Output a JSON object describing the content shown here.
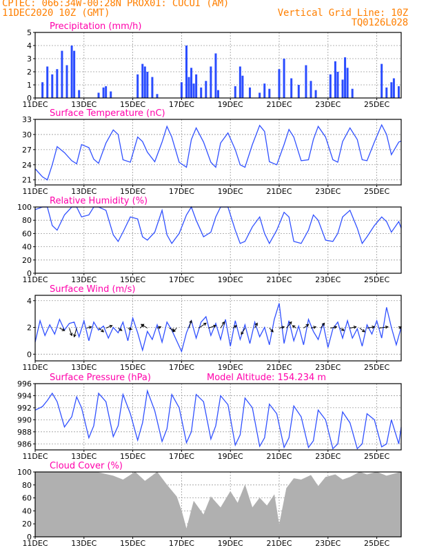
{
  "header": {
    "line1": "CPTEC:   066:34W-00:28N   PROX01: CUCUI (AM)",
    "line2": "11DEC2020 10Z (GMT)",
    "grid_note": "Vertical Grid Line: 10Z",
    "code": "TQ0126L028",
    "model_altitude": "Model Altitude: 154.234 m"
  },
  "colors": {
    "header": "#ff7f00",
    "title": "#ff00aa",
    "series": "#3050ff",
    "bars": "#2a4cff",
    "cloud": "#b0b0b0",
    "arrows": "#000000"
  },
  "x_ticks": [
    "11DEC",
    "13DEC",
    "15DEC",
    "17DEC",
    "19DEC",
    "21DEC",
    "23DEC",
    "25DEC"
  ],
  "x_tick_days": [
    0,
    2,
    4,
    6,
    8,
    10,
    12,
    14
  ],
  "x_range_days": [
    0,
    15
  ],
  "chart_data": [
    {
      "id": "precip",
      "type": "bar",
      "title": "Precipitation (mm/h)",
      "ylim": [
        0,
        5
      ],
      "yticks": [
        0,
        1,
        2,
        3,
        4,
        5
      ],
      "grid": true,
      "x_unit": "days since 11DEC 10Z",
      "x": [
        0.3,
        0.5,
        0.7,
        0.9,
        1.1,
        1.3,
        1.5,
        1.6,
        1.8,
        2.6,
        2.8,
        2.9,
        3.1,
        4.2,
        4.4,
        4.5,
        4.6,
        4.8,
        5.0,
        6.0,
        6.2,
        6.3,
        6.4,
        6.5,
        6.6,
        6.8,
        7.0,
        7.2,
        7.4,
        7.5,
        8.2,
        8.4,
        8.5,
        8.8,
        9.2,
        9.4,
        9.6,
        10.0,
        10.2,
        10.5,
        10.8,
        11.1,
        11.3,
        11.5,
        12.1,
        12.3,
        12.4,
        12.6,
        12.7,
        12.8,
        13.0,
        14.2,
        14.4,
        14.6,
        14.7,
        14.9
      ],
      "values": [
        1.2,
        2.4,
        1.8,
        2.2,
        3.6,
        2.5,
        4.0,
        3.6,
        0.6,
        0.4,
        0.8,
        0.9,
        0.5,
        1.8,
        2.6,
        2.4,
        2.0,
        1.6,
        0.3,
        1.2,
        4.0,
        1.6,
        2.3,
        1.1,
        1.8,
        0.8,
        1.3,
        2.4,
        3.4,
        0.6,
        0.9,
        2.4,
        1.7,
        0.8,
        0.4,
        1.1,
        0.7,
        2.2,
        3.0,
        1.5,
        1.0,
        2.5,
        1.3,
        0.6,
        1.8,
        2.8,
        2.0,
        1.4,
        3.1,
        2.3,
        0.7,
        2.6,
        0.8,
        1.2,
        1.5,
        0.9
      ]
    },
    {
      "id": "temp",
      "type": "line",
      "title": "Surface Temperature (nC)",
      "ylim": [
        20,
        33
      ],
      "yticks": [
        21,
        24,
        27,
        30,
        33
      ],
      "grid": true,
      "x_unit": "days since 11DEC 10Z",
      "x": [
        0,
        0.3,
        0.5,
        0.7,
        0.9,
        1.2,
        1.5,
        1.7,
        1.9,
        2.2,
        2.4,
        2.6,
        2.9,
        3.2,
        3.4,
        3.6,
        3.9,
        4.2,
        4.4,
        4.6,
        4.9,
        5.2,
        5.4,
        5.6,
        5.9,
        6.2,
        6.4,
        6.6,
        6.9,
        7.2,
        7.4,
        7.6,
        7.9,
        8.2,
        8.4,
        8.6,
        8.9,
        9.2,
        9.4,
        9.6,
        9.9,
        10.2,
        10.4,
        10.6,
        10.9,
        11.2,
        11.4,
        11.6,
        11.9,
        12.2,
        12.4,
        12.6,
        12.9,
        13.2,
        13.4,
        13.6,
        13.9,
        14.2,
        14.4,
        14.6,
        14.9,
        15.0
      ],
      "values": [
        23.2,
        21.6,
        21.0,
        24.0,
        27.6,
        26.4,
        24.8,
        24.2,
        28.0,
        27.4,
        25.1,
        24.3,
        28.3,
        30.9,
        30.0,
        25.0,
        24.5,
        29.5,
        28.6,
        26.5,
        24.6,
        28.5,
        31.6,
        29.5,
        24.5,
        23.5,
        29.0,
        31.3,
        28.5,
        24.5,
        23.5,
        28.3,
        30.3,
        27.0,
        24.0,
        23.5,
        28.0,
        31.8,
        30.6,
        24.6,
        24.0,
        28.0,
        31.0,
        29.5,
        24.8,
        25.0,
        29.0,
        31.6,
        29.5,
        25.0,
        24.5,
        28.6,
        31.3,
        29.0,
        25.0,
        24.8,
        28.5,
        31.9,
        30.0,
        26.0,
        28.5,
        28.7
      ]
    },
    {
      "id": "rh",
      "type": "line",
      "title": "Relative Humidity (%)",
      "ylim": [
        0,
        100
      ],
      "yticks": [
        0,
        20,
        40,
        60,
        80,
        100
      ],
      "grid": true,
      "x_unit": "days since 11DEC 10Z",
      "x": [
        0,
        0.3,
        0.5,
        0.7,
        0.9,
        1.2,
        1.5,
        1.7,
        1.9,
        2.2,
        2.4,
        2.6,
        2.9,
        3.2,
        3.4,
        3.6,
        3.9,
        4.2,
        4.4,
        4.6,
        4.9,
        5.2,
        5.4,
        5.6,
        5.9,
        6.2,
        6.4,
        6.6,
        6.9,
        7.2,
        7.4,
        7.6,
        7.9,
        8.2,
        8.4,
        8.6,
        8.9,
        9.2,
        9.4,
        9.6,
        9.9,
        10.2,
        10.4,
        10.6,
        10.9,
        11.2,
        11.4,
        11.6,
        11.9,
        12.2,
        12.4,
        12.6,
        12.9,
        13.2,
        13.4,
        13.6,
        13.9,
        14.2,
        14.4,
        14.6,
        14.9,
        15.0
      ],
      "values": [
        96,
        100,
        100,
        72,
        65,
        88,
        100,
        100,
        85,
        88,
        100,
        100,
        95,
        58,
        48,
        62,
        85,
        82,
        55,
        50,
        62,
        95,
        58,
        45,
        60,
        88,
        100,
        80,
        55,
        62,
        85,
        100,
        100,
        65,
        45,
        48,
        70,
        85,
        60,
        45,
        65,
        92,
        85,
        48,
        45,
        65,
        88,
        80,
        50,
        48,
        60,
        85,
        95,
        68,
        45,
        55,
        72,
        85,
        78,
        62,
        78,
        68
      ]
    },
    {
      "id": "wind",
      "type": "line",
      "title": "Surface Wind (m/s)",
      "ylim": [
        -0.5,
        4.4
      ],
      "yticks": [
        0,
        2,
        4
      ],
      "grid": true,
      "x_unit": "days since 11DEC 10Z",
      "x": [
        0,
        0.2,
        0.4,
        0.6,
        0.8,
        1.0,
        1.2,
        1.4,
        1.6,
        1.8,
        2.0,
        2.2,
        2.4,
        2.6,
        2.8,
        3.0,
        3.2,
        3.4,
        3.6,
        3.8,
        4.0,
        4.2,
        4.4,
        4.6,
        4.8,
        5.0,
        5.2,
        5.4,
        5.6,
        5.8,
        6.0,
        6.2,
        6.4,
        6.6,
        6.8,
        7.0,
        7.2,
        7.4,
        7.6,
        7.8,
        8.0,
        8.2,
        8.4,
        8.6,
        8.8,
        9.0,
        9.2,
        9.4,
        9.6,
        9.8,
        10.0,
        10.2,
        10.4,
        10.6,
        10.8,
        11.0,
        11.2,
        11.4,
        11.6,
        11.8,
        12.0,
        12.2,
        12.4,
        12.6,
        12.8,
        13.0,
        13.2,
        13.4,
        13.6,
        13.8,
        14.0,
        14.2,
        14.4,
        14.6,
        14.8,
        15.0
      ],
      "values": [
        0.9,
        2.5,
        1.4,
        2.2,
        1.5,
        2.6,
        1.8,
        2.3,
        2.4,
        1.3,
        2.5,
        1.0,
        2.4,
        1.8,
        2.1,
        1.2,
        2.0,
        1.6,
        2.4,
        1.0,
        2.7,
        1.6,
        0.3,
        1.7,
        1.1,
        2.2,
        0.9,
        2.4,
        1.8,
        1.0,
        0.2,
        1.6,
        2.5,
        1.2,
        2.4,
        2.8,
        1.4,
        2.3,
        1.1,
        2.6,
        0.6,
        2.5,
        1.1,
        2.2,
        0.8,
        2.4,
        1.3,
        2.0,
        0.7,
        2.6,
        3.8,
        0.8,
        2.5,
        1.0,
        2.1,
        0.7,
        2.6,
        1.7,
        1.1,
        2.3,
        0.5,
        1.9,
        2.4,
        1.2,
        2.5,
        1.2,
        1.9,
        0.6,
        2.2,
        1.5,
        2.5,
        1.2,
        3.5,
        2.0,
        0.7,
        2.0
      ],
      "arrows": [
        [
          1.0,
          0.4,
          -0.2
        ],
        [
          1.4,
          0.2,
          -0.6
        ],
        [
          1.7,
          -0.2,
          -0.7
        ],
        [
          2.1,
          0.4,
          0.1
        ],
        [
          2.6,
          0.4,
          -0.3
        ],
        [
          2.9,
          0.5,
          0.2
        ],
        [
          3.4,
          0.3,
          -0.2
        ],
        [
          3.8,
          0.3,
          -0.1
        ],
        [
          4.3,
          0.3,
          0.3
        ],
        [
          4.6,
          -0.5,
          0.3
        ],
        [
          5.0,
          0.3,
          0.1
        ],
        [
          5.5,
          0.4,
          -0.2
        ],
        [
          5.8,
          -0.3,
          -0.3
        ],
        [
          6.3,
          0.2,
          0.6
        ],
        [
          6.7,
          0.6,
          0.4
        ],
        [
          7.1,
          0.6,
          0.2
        ],
        [
          7.6,
          0.3,
          0.5
        ],
        [
          8.1,
          0.3,
          0.2
        ],
        [
          8.6,
          -0.3,
          -0.5
        ],
        [
          9.0,
          0.2,
          0.4
        ],
        [
          9.6,
          0.3,
          -0.3
        ],
        [
          10.0,
          0.4,
          0.1
        ],
        [
          10.3,
          0.4,
          0.5
        ],
        [
          10.7,
          -0.3,
          0.2
        ],
        [
          11.0,
          0.4,
          0.3
        ],
        [
          11.3,
          0.4,
          0.1
        ],
        [
          11.7,
          0.3,
          0.4
        ],
        [
          12.1,
          0.5,
          0.1
        ],
        [
          12.5,
          0.3,
          -0.2
        ],
        [
          12.9,
          0.5,
          0.1
        ],
        [
          13.3,
          0.4,
          -0.3
        ],
        [
          13.6,
          0.6,
          0.1
        ],
        [
          14.1,
          0.7,
          0.1
        ],
        [
          14.9,
          0.2,
          0.1
        ]
      ]
    },
    {
      "id": "pres",
      "type": "line",
      "title": "Surface Pressure (hPa)",
      "ylim": [
        985,
        996
      ],
      "yticks": [
        986,
        988,
        990,
        992,
        994,
        996
      ],
      "grid": true,
      "x_unit": "days since 11DEC 10Z",
      "x": [
        0,
        0.3,
        0.5,
        0.7,
        0.9,
        1.2,
        1.5,
        1.7,
        1.9,
        2.2,
        2.4,
        2.6,
        2.9,
        3.2,
        3.4,
        3.6,
        3.9,
        4.2,
        4.4,
        4.6,
        4.9,
        5.2,
        5.4,
        5.6,
        5.9,
        6.2,
        6.4,
        6.6,
        6.9,
        7.2,
        7.4,
        7.6,
        7.9,
        8.2,
        8.4,
        8.6,
        8.9,
        9.2,
        9.4,
        9.6,
        9.9,
        10.2,
        10.4,
        10.6,
        10.9,
        11.2,
        11.4,
        11.6,
        11.9,
        12.2,
        12.4,
        12.6,
        12.9,
        13.2,
        13.4,
        13.6,
        13.9,
        14.2,
        14.4,
        14.6,
        14.9,
        15.0
      ],
      "values": [
        991.6,
        992.2,
        993.2,
        994.4,
        993.0,
        988.8,
        990.5,
        993.8,
        992.0,
        987.0,
        989.0,
        994.4,
        993.0,
        987.2,
        989.0,
        994.2,
        991.0,
        986.6,
        989.5,
        994.8,
        991.5,
        986.4,
        988.5,
        994.2,
        992.0,
        986.2,
        988.0,
        994.2,
        993.0,
        986.8,
        989.0,
        994.0,
        992.5,
        985.8,
        987.5,
        993.6,
        992.0,
        985.6,
        987.0,
        992.6,
        991.0,
        985.4,
        987.0,
        992.3,
        990.5,
        985.4,
        986.5,
        991.6,
        990.0,
        985.2,
        986.0,
        991.3,
        989.5,
        985.2,
        986.0,
        991.0,
        990.0,
        985.5,
        986.0,
        990.0,
        986.0,
        988.8
      ]
    },
    {
      "id": "cloud",
      "type": "area",
      "title": "Cloud Cover (%)",
      "ylim": [
        0,
        100
      ],
      "yticks": [
        0,
        20,
        40,
        60,
        80,
        100
      ],
      "grid": true,
      "x_unit": "days since 11DEC 10Z",
      "x": [
        0,
        1.5,
        2.5,
        3.2,
        3.6,
        4.1,
        4.5,
        5.0,
        5.4,
        5.8,
        6.0,
        6.2,
        6.5,
        6.9,
        7.2,
        7.6,
        8.0,
        8.3,
        8.6,
        8.9,
        9.2,
        9.5,
        9.8,
        10.0,
        10.3,
        10.6,
        10.9,
        11.3,
        11.6,
        11.9,
        12.3,
        12.6,
        12.9,
        13.3,
        13.6,
        14.0,
        14.4,
        15.0
      ],
      "values": [
        100,
        100,
        100,
        94,
        88,
        100,
        86,
        100,
        80,
        62,
        40,
        12,
        55,
        34,
        62,
        45,
        70,
        52,
        80,
        45,
        60,
        48,
        65,
        18,
        75,
        90,
        88,
        95,
        78,
        92,
        96,
        88,
        92,
        100,
        96,
        100,
        94,
        100
      ]
    }
  ]
}
